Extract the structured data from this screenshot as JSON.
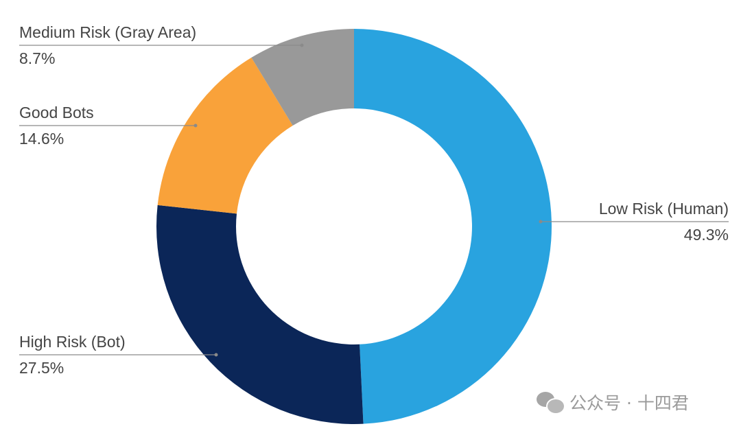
{
  "chart_data": {
    "type": "pie",
    "donut": true,
    "title": "",
    "start_angle": "top, clockwise",
    "legend": "leader-line labels",
    "slices": [
      {
        "label": "Low Risk (Human)",
        "value": 49.3,
        "value_label": "49.3%",
        "color": "#29a3df"
      },
      {
        "label": "High Risk (Bot)",
        "value": 27.5,
        "value_label": "27.5%",
        "color": "#0b2658"
      },
      {
        "label": "Good Bots",
        "value": 14.6,
        "value_label": "14.6%",
        "color": "#f9a23a"
      },
      {
        "label": "Medium Risk (Gray Area)",
        "value": 8.7,
        "value_label": "8.7%",
        "color": "#999999"
      }
    ]
  },
  "watermark": {
    "text": "公众号 · 十四君",
    "icon": "wechat-icon"
  }
}
